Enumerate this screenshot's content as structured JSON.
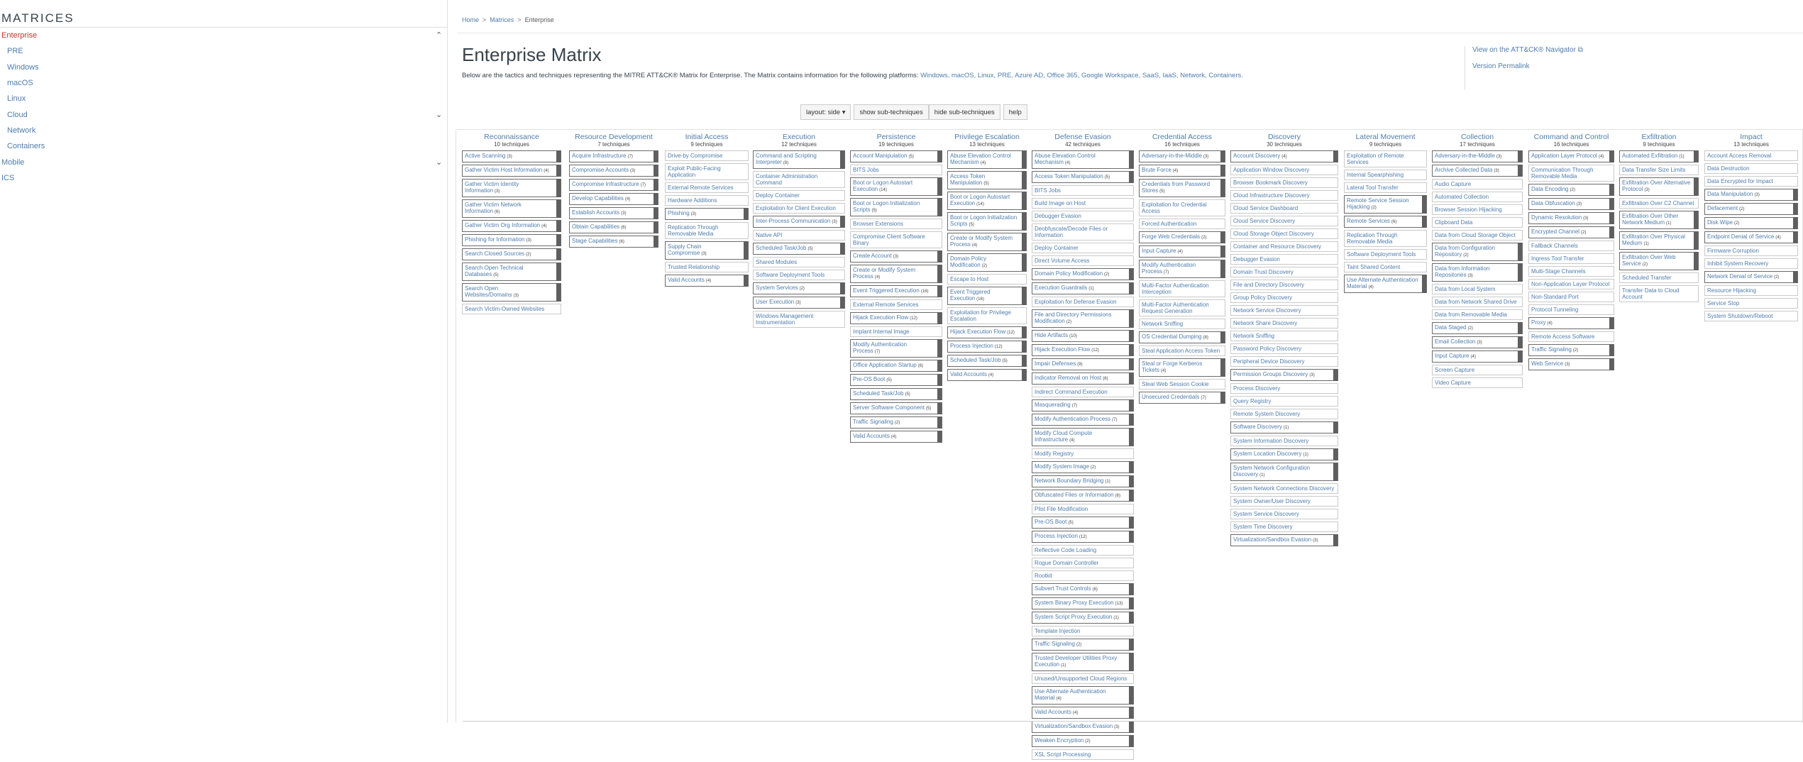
{
  "sidebar": {
    "title": "MATRICES",
    "items": [
      {
        "label": "Enterprise",
        "active": true,
        "indent": 0,
        "expandable": true
      },
      {
        "label": "PRE",
        "indent": 1
      },
      {
        "label": "Windows",
        "indent": 1
      },
      {
        "label": "macOS",
        "indent": 1
      },
      {
        "label": "Linux",
        "indent": 1
      },
      {
        "label": "Cloud",
        "indent": 1,
        "expandable": true
      },
      {
        "label": "Network",
        "indent": 1
      },
      {
        "label": "Containers",
        "indent": 1
      },
      {
        "label": "Mobile",
        "indent": 0,
        "expandable": true
      },
      {
        "label": "ICS",
        "indent": 0
      }
    ]
  },
  "breadcrumb": [
    "Home",
    "Matrices",
    "Enterprise"
  ],
  "page": {
    "title": "Enterprise Matrix",
    "intro_prefix": "Below are the tactics and techniques representing the MITRE ATT&CK® Matrix for Enterprise. The Matrix contains information for the following platforms: ",
    "platforms": "Windows, macOS, Linux, PRE, Azure AD, Office 365, Google Workspace, SaaS, IaaS, Network, Containers.",
    "navigator_link": "View on the ATT&CK® Navigator",
    "permalink": "Version Permalink"
  },
  "toolbar": {
    "layout": "layout: side ▾",
    "show": "show sub-techniques",
    "hide": "hide sub-techniques",
    "help": "help"
  },
  "tactics": [
    {
      "name": "Reconnaissance",
      "count": "10 techniques",
      "techniques": [
        [
          "Active Scanning",
          "(3)"
        ],
        [
          "Gather Victim Host Information",
          "(4)"
        ],
        [
          "Gather Victim Identity Information",
          "(3)"
        ],
        [
          "Gather Victim Network Information",
          "(6)"
        ],
        [
          "Gather Victim Org Information",
          "(4)"
        ],
        [
          "Phishing for Information",
          "(3)"
        ],
        [
          "Search Closed Sources",
          "(2)"
        ],
        [
          "Search Open Technical Databases",
          "(5)"
        ],
        [
          "Search Open Websites/Domains",
          "(3)"
        ],
        [
          "Search Victim-Owned Websites",
          ""
        ]
      ]
    },
    {
      "name": "Resource Development",
      "count": "7 techniques",
      "techniques": [
        [
          "Acquire Infrastructure",
          "(7)"
        ],
        [
          "Compromise Accounts",
          "(3)"
        ],
        [
          "Compromise Infrastructure",
          "(7)"
        ],
        [
          "Develop Capabilities",
          "(4)"
        ],
        [
          "Establish Accounts",
          "(3)"
        ],
        [
          "Obtain Capabilities",
          "(6)"
        ],
        [
          "Stage Capabilities",
          "(6)"
        ]
      ]
    },
    {
      "name": "Initial Access",
      "count": "9 techniques",
      "techniques": [
        [
          "Drive-by Compromise",
          ""
        ],
        [
          "Exploit Public-Facing Application",
          ""
        ],
        [
          "External Remote Services",
          ""
        ],
        [
          "Hardware Additions",
          ""
        ],
        [
          "Phishing",
          "(3)"
        ],
        [
          "Replication Through Removable Media",
          ""
        ],
        [
          "Supply Chain Compromise",
          "(3)"
        ],
        [
          "Trusted Relationship",
          ""
        ],
        [
          "Valid Accounts",
          "(4)"
        ]
      ]
    },
    {
      "name": "Execution",
      "count": "12 techniques",
      "techniques": [
        [
          "Command and Scripting Interpreter",
          "(8)"
        ],
        [
          "Container Administration Command",
          ""
        ],
        [
          "Deploy Container",
          ""
        ],
        [
          "Exploitation for Client Execution",
          ""
        ],
        [
          "Inter-Process Communication",
          "(3)"
        ],
        [
          "Native API",
          ""
        ],
        [
          "Scheduled Task/Job",
          "(5)"
        ],
        [
          "Shared Modules",
          ""
        ],
        [
          "Software Deployment Tools",
          ""
        ],
        [
          "System Services",
          "(2)"
        ],
        [
          "User Execution",
          "(3)"
        ],
        [
          "Windows Management Instrumentation",
          ""
        ]
      ]
    },
    {
      "name": "Persistence",
      "count": "19 techniques",
      "techniques": [
        [
          "Account Manipulation",
          "(5)"
        ],
        [
          "BITS Jobs",
          ""
        ],
        [
          "Boot or Logon Autostart Execution",
          "(14)"
        ],
        [
          "Boot or Logon Initialization Scripts",
          "(5)"
        ],
        [
          "Browser Extensions",
          ""
        ],
        [
          "Compromise Client Software Binary",
          ""
        ],
        [
          "Create Account",
          "(3)"
        ],
        [
          "Create or Modify System Process",
          "(4)"
        ],
        [
          "Event Triggered Execution",
          "(16)"
        ],
        [
          "External Remote Services",
          ""
        ],
        [
          "Hijack Execution Flow",
          "(12)"
        ],
        [
          "Implant Internal Image",
          ""
        ],
        [
          "Modify Authentication Process",
          "(7)"
        ],
        [
          "Office Application Startup",
          "(6)"
        ],
        [
          "Pre-OS Boot",
          "(5)"
        ],
        [
          "Scheduled Task/Job",
          "(5)"
        ],
        [
          "Server Software Component",
          "(5)"
        ],
        [
          "Traffic Signaling",
          "(2)"
        ],
        [
          "Valid Accounts",
          "(4)"
        ]
      ]
    },
    {
      "name": "Privilege Escalation",
      "count": "13 techniques",
      "techniques": [
        [
          "Abuse Elevation Control Mechanism",
          "(4)"
        ],
        [
          "Access Token Manipulation",
          "(5)"
        ],
        [
          "Boot or Logon Autostart Execution",
          "(14)"
        ],
        [
          "Boot or Logon Initialization Scripts",
          "(5)"
        ],
        [
          "Create or Modify System Process",
          "(4)"
        ],
        [
          "Domain Policy Modification",
          "(2)"
        ],
        [
          "Escape to Host",
          ""
        ],
        [
          "Event Triggered Execution",
          "(16)"
        ],
        [
          "Exploitation for Privilege Escalation",
          ""
        ],
        [
          "Hijack Execution Flow",
          "(12)"
        ],
        [
          "Process Injection",
          "(12)"
        ],
        [
          "Scheduled Task/Job",
          "(5)"
        ],
        [
          "Valid Accounts",
          "(4)"
        ]
      ]
    },
    {
      "name": "Defense Evasion",
      "count": "42 techniques",
      "techniques": [
        [
          "Abuse Elevation Control Mechanism",
          "(4)"
        ],
        [
          "Access Token Manipulation",
          "(5)"
        ],
        [
          "BITS Jobs",
          ""
        ],
        [
          "Build Image on Host",
          ""
        ],
        [
          "Debugger Evasion",
          ""
        ],
        [
          "Deobfuscate/Decode Files or Information",
          ""
        ],
        [
          "Deploy Container",
          ""
        ],
        [
          "Direct Volume Access",
          ""
        ],
        [
          "Domain Policy Modification",
          "(2)"
        ],
        [
          "Execution Guardrails",
          "(1)"
        ],
        [
          "Exploitation for Defense Evasion",
          ""
        ],
        [
          "File and Directory Permissions Modification",
          "(2)"
        ],
        [
          "Hide Artifacts",
          "(10)"
        ],
        [
          "Hijack Execution Flow",
          "(12)"
        ],
        [
          "Impair Defenses",
          "(9)"
        ],
        [
          "Indicator Removal on Host",
          "(6)"
        ],
        [
          "Indirect Command Execution",
          ""
        ],
        [
          "Masquerading",
          "(7)"
        ],
        [
          "Modify Authentication Process",
          "(7)"
        ],
        [
          "Modify Cloud Compute Infrastructure",
          "(4)"
        ],
        [
          "Modify Registry",
          ""
        ],
        [
          "Modify System Image",
          "(2)"
        ],
        [
          "Network Boundary Bridging",
          "(1)"
        ],
        [
          "Obfuscated Files or Information",
          "(6)"
        ],
        [
          "Plist File Modification",
          ""
        ],
        [
          "Pre-OS Boot",
          "(5)"
        ],
        [
          "Process Injection",
          "(12)"
        ],
        [
          "Reflective Code Loading",
          ""
        ],
        [
          "Rogue Domain Controller",
          ""
        ],
        [
          "Rootkit",
          ""
        ],
        [
          "Subvert Trust Controls",
          "(6)"
        ],
        [
          "System Binary Proxy Execution",
          "(13)"
        ],
        [
          "System Script Proxy Execution",
          "(1)"
        ],
        [
          "Template Injection",
          ""
        ],
        [
          "Traffic Signaling",
          "(2)"
        ],
        [
          "Trusted Developer Utilities Proxy Execution",
          "(1)"
        ],
        [
          "Unused/Unsupported Cloud Regions",
          ""
        ],
        [
          "Use Alternate Authentication Material",
          "(4)"
        ],
        [
          "Valid Accounts",
          "(4)"
        ],
        [
          "Virtualization/Sandbox Evasion",
          "(3)"
        ],
        [
          "Weaken Encryption",
          "(2)"
        ],
        [
          "XSL Script Processing",
          ""
        ]
      ]
    },
    {
      "name": "Credential Access",
      "count": "16 techniques",
      "techniques": [
        [
          "Adversary-in-the-Middle",
          "(3)"
        ],
        [
          "Brute Force",
          "(4)"
        ],
        [
          "Credentials from Password Stores",
          "(5)"
        ],
        [
          "Exploitation for Credential Access",
          ""
        ],
        [
          "Forced Authentication",
          ""
        ],
        [
          "Forge Web Credentials",
          "(2)"
        ],
        [
          "Input Capture",
          "(4)"
        ],
        [
          "Modify Authentication Process",
          "(7)"
        ],
        [
          "Multi-Factor Authentication Interception",
          ""
        ],
        [
          "Multi-Factor Authentication Request Generation",
          ""
        ],
        [
          "Network Sniffing",
          ""
        ],
        [
          "OS Credential Dumping",
          "(8)"
        ],
        [
          "Steal Application Access Token",
          ""
        ],
        [
          "Steal or Forge Kerberos Tickets",
          "(4)"
        ],
        [
          "Steal Web Session Cookie",
          ""
        ],
        [
          "Unsecured Credentials",
          "(7)"
        ]
      ]
    },
    {
      "name": "Discovery",
      "count": "30 techniques",
      "techniques": [
        [
          "Account Discovery",
          "(4)"
        ],
        [
          "Application Window Discovery",
          ""
        ],
        [
          "Browser Bookmark Discovery",
          ""
        ],
        [
          "Cloud Infrastructure Discovery",
          ""
        ],
        [
          "Cloud Service Dashboard",
          ""
        ],
        [
          "Cloud Service Discovery",
          ""
        ],
        [
          "Cloud Storage Object Discovery",
          ""
        ],
        [
          "Container and Resource Discovery",
          ""
        ],
        [
          "Debugger Evasion",
          ""
        ],
        [
          "Domain Trust Discovery",
          ""
        ],
        [
          "File and Directory Discovery",
          ""
        ],
        [
          "Group Policy Discovery",
          ""
        ],
        [
          "Network Service Discovery",
          ""
        ],
        [
          "Network Share Discovery",
          ""
        ],
        [
          "Network Sniffing",
          ""
        ],
        [
          "Password Policy Discovery",
          ""
        ],
        [
          "Peripheral Device Discovery",
          ""
        ],
        [
          "Permission Groups Discovery",
          "(3)"
        ],
        [
          "Process Discovery",
          ""
        ],
        [
          "Query Registry",
          ""
        ],
        [
          "Remote System Discovery",
          ""
        ],
        [
          "Software Discovery",
          "(1)"
        ],
        [
          "System Information Discovery",
          ""
        ],
        [
          "System Location Discovery",
          "(1)"
        ],
        [
          "System Network Configuration Discovery",
          "(1)"
        ],
        [
          "System Network Connections Discovery",
          ""
        ],
        [
          "System Owner/User Discovery",
          ""
        ],
        [
          "System Service Discovery",
          ""
        ],
        [
          "System Time Discovery",
          ""
        ],
        [
          "Virtualization/Sandbox Evasion",
          "(3)"
        ]
      ]
    },
    {
      "name": "Lateral Movement",
      "count": "9 techniques",
      "techniques": [
        [
          "Exploitation of Remote Services",
          ""
        ],
        [
          "Internal Spearphishing",
          ""
        ],
        [
          "Lateral Tool Transfer",
          ""
        ],
        [
          "Remote Service Session Hijacking",
          "(2)"
        ],
        [
          "Remote Services",
          "(6)"
        ],
        [
          "Replication Through Removable Media",
          ""
        ],
        [
          "Software Deployment Tools",
          ""
        ],
        [
          "Taint Shared Content",
          ""
        ],
        [
          "Use Alternate Authentication Material",
          "(4)"
        ]
      ]
    },
    {
      "name": "Collection",
      "count": "17 techniques",
      "techniques": [
        [
          "Adversary-in-the-Middle",
          "(3)"
        ],
        [
          "Archive Collected Data",
          "(3)"
        ],
        [
          "Audio Capture",
          ""
        ],
        [
          "Automated Collection",
          ""
        ],
        [
          "Browser Session Hijacking",
          ""
        ],
        [
          "Clipboard Data",
          ""
        ],
        [
          "Data from Cloud Storage Object",
          ""
        ],
        [
          "Data from Configuration Repository",
          "(2)"
        ],
        [
          "Data from Information Repositories",
          "(3)"
        ],
        [
          "Data from Local System",
          ""
        ],
        [
          "Data from Network Shared Drive",
          ""
        ],
        [
          "Data from Removable Media",
          ""
        ],
        [
          "Data Staged",
          "(2)"
        ],
        [
          "Email Collection",
          "(3)"
        ],
        [
          "Input Capture",
          "(4)"
        ],
        [
          "Screen Capture",
          ""
        ],
        [
          "Video Capture",
          ""
        ]
      ]
    },
    {
      "name": "Command and Control",
      "count": "16 techniques",
      "techniques": [
        [
          "Application Layer Protocol",
          "(4)"
        ],
        [
          "Communication Through Removable Media",
          ""
        ],
        [
          "Data Encoding",
          "(2)"
        ],
        [
          "Data Obfuscation",
          "(3)"
        ],
        [
          "Dynamic Resolution",
          "(3)"
        ],
        [
          "Encrypted Channel",
          "(2)"
        ],
        [
          "Fallback Channels",
          ""
        ],
        [
          "Ingress Tool Transfer",
          ""
        ],
        [
          "Multi-Stage Channels",
          ""
        ],
        [
          "Non-Application Layer Protocol",
          ""
        ],
        [
          "Non-Standard Port",
          ""
        ],
        [
          "Protocol Tunneling",
          ""
        ],
        [
          "Proxy",
          "(4)"
        ],
        [
          "Remote Access Software",
          ""
        ],
        [
          "Traffic Signaling",
          "(2)"
        ],
        [
          "Web Service",
          "(3)"
        ]
      ]
    },
    {
      "name": "Exfiltration",
      "count": "9 techniques",
      "techniques": [
        [
          "Automated Exfiltration",
          "(1)"
        ],
        [
          "Data Transfer Size Limits",
          ""
        ],
        [
          "Exfiltration Over Alternative Protocol",
          "(3)"
        ],
        [
          "Exfiltration Over C2 Channel",
          ""
        ],
        [
          "Exfiltration Over Other Network Medium",
          "(1)"
        ],
        [
          "Exfiltration Over Physical Medium",
          "(1)"
        ],
        [
          "Exfiltration Over Web Service",
          "(2)"
        ],
        [
          "Scheduled Transfer",
          ""
        ],
        [
          "Transfer Data to Cloud Account",
          ""
        ]
      ]
    },
    {
      "name": "Impact",
      "count": "13 techniques",
      "techniques": [
        [
          "Account Access Removal",
          ""
        ],
        [
          "Data Destruction",
          ""
        ],
        [
          "Data Encrypted for Impact",
          ""
        ],
        [
          "Data Manipulation",
          "(3)"
        ],
        [
          "Defacement",
          "(2)"
        ],
        [
          "Disk Wipe",
          "(2)"
        ],
        [
          "Endpoint Denial of Service",
          "(4)"
        ],
        [
          "Firmware Corruption",
          ""
        ],
        [
          "Inhibit System Recovery",
          ""
        ],
        [
          "Network Denial of Service",
          "(2)"
        ],
        [
          "Resource Hijacking",
          ""
        ],
        [
          "Service Stop",
          ""
        ],
        [
          "System Shutdown/Reboot",
          ""
        ]
      ]
    }
  ]
}
